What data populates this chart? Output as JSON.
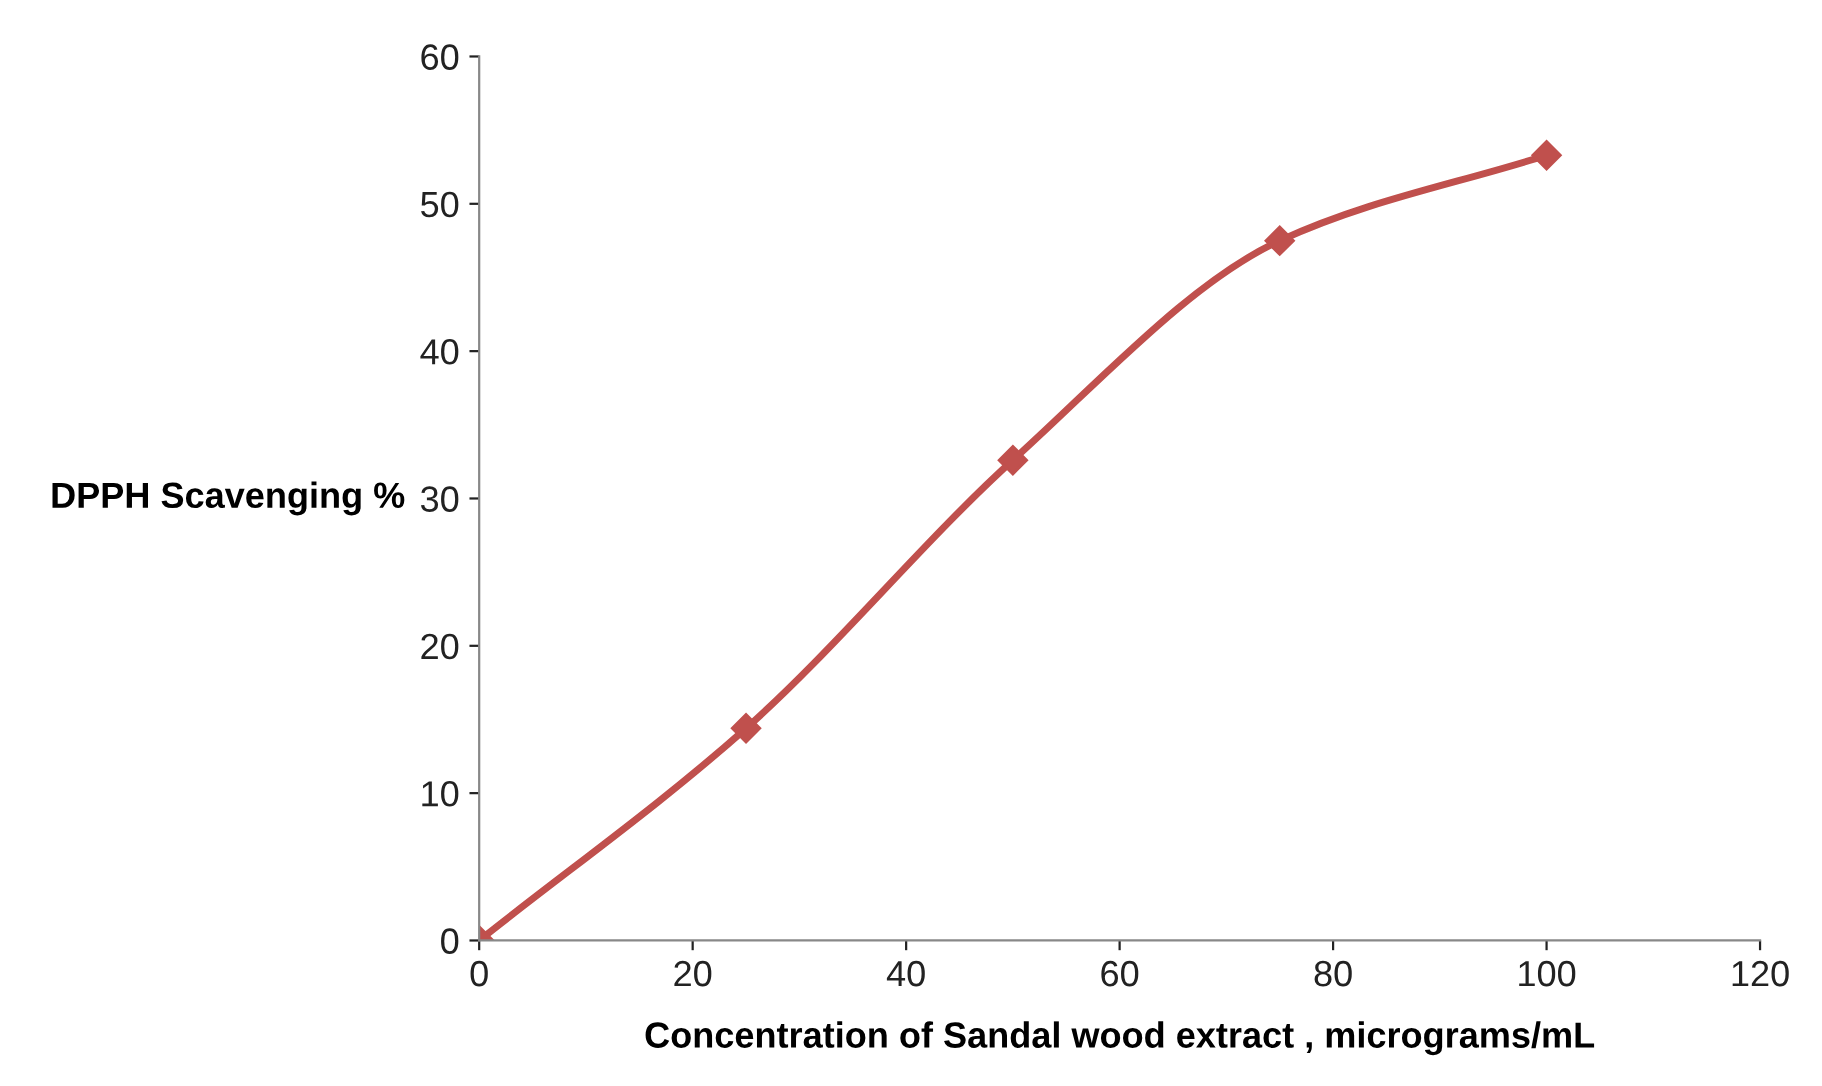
{
  "chart_data": {
    "type": "line",
    "xlabel": "Concentration of Sandal wood extract , micrograms/mL",
    "ylabel": "DPPH Scavenging %",
    "x": [
      0,
      25,
      50,
      75,
      100
    ],
    "series": [
      {
        "color": "#c0504d",
        "values": [
          0,
          14.4,
          32.6,
          47.5,
          53.3
        ]
      }
    ],
    "xlim": [
      0,
      120
    ],
    "xticks": [
      0,
      20,
      40,
      60,
      80,
      100,
      120
    ],
    "ylim": [
      0,
      60
    ],
    "yticks": [
      0,
      10,
      20,
      30,
      40,
      50,
      60
    ],
    "grid": false,
    "marker": "diamond",
    "line_style": "solid"
  }
}
